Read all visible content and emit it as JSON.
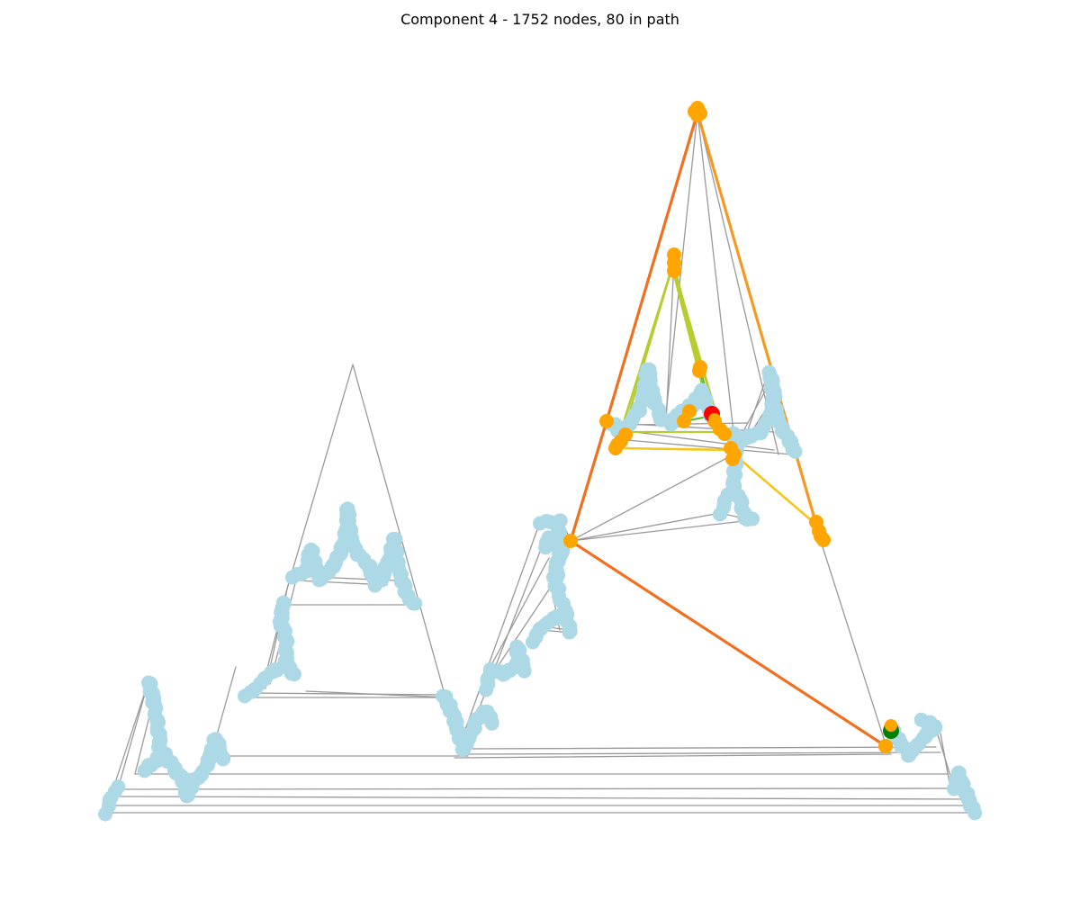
{
  "figure": {
    "title": "Component 4 - 1752 nodes, 80 in path"
  },
  "colors": {
    "node": "#add8e6",
    "path_node": "#ffa500",
    "start_node": "#ff0000",
    "end_node": "#008000",
    "edge": "#999999",
    "path_edge_orange": "#f07020",
    "path_edge_amber": "#f59a20",
    "path_edge_yellow": "#f5c518",
    "path_edge_yellowgreen": "#b8cc30",
    "path_edge_green": "#55c040"
  },
  "graph": {
    "type": "network",
    "total_nodes": 1752,
    "path_nodes": 80
  }
}
